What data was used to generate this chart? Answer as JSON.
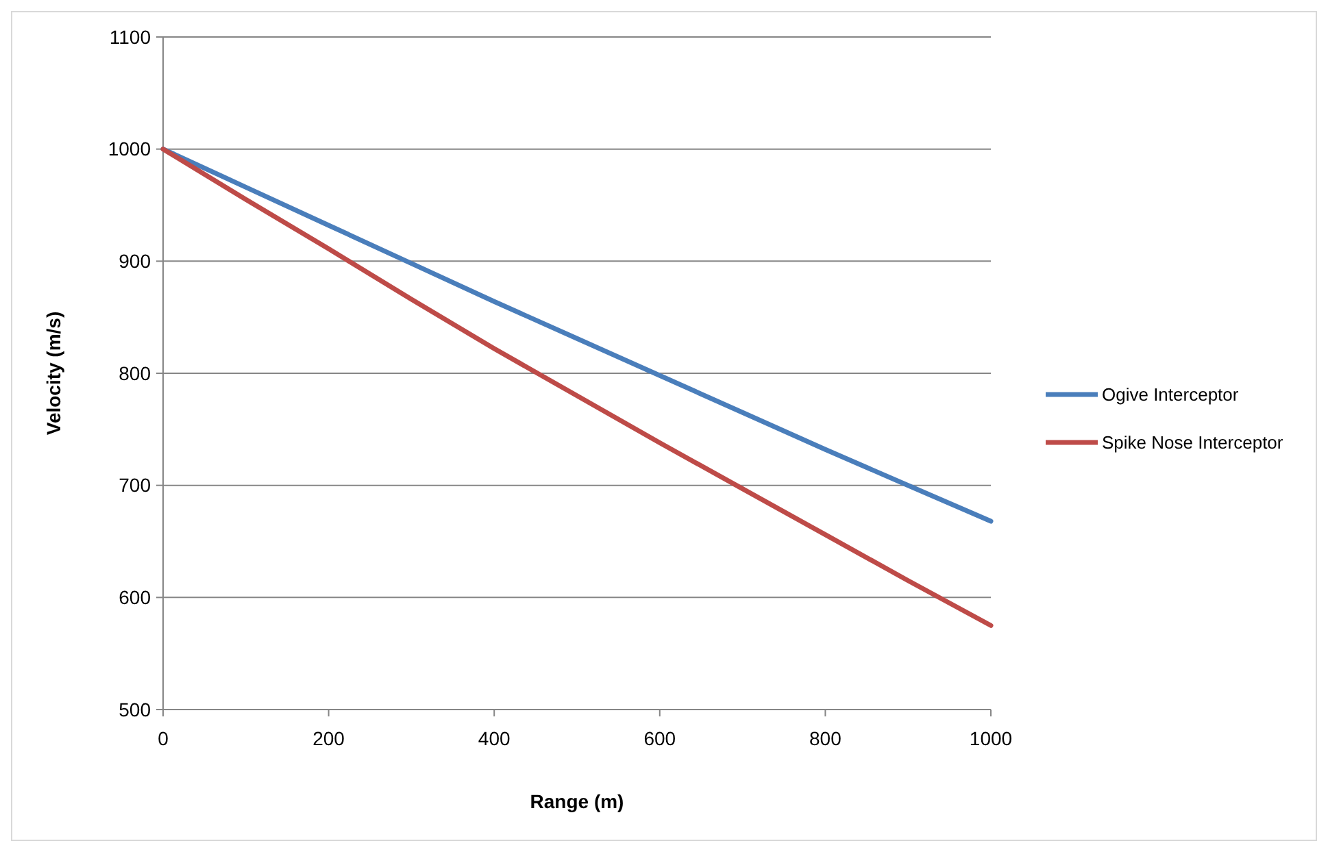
{
  "chart_data": {
    "type": "line",
    "xlabel": "Range (m)",
    "ylabel": "Velocity (m/s)",
    "x": [
      0,
      100,
      200,
      300,
      400,
      500,
      600,
      700,
      800,
      900,
      1000
    ],
    "series": [
      {
        "name": "Ogive Interceptor",
        "color": "#4a7ebb",
        "values": [
          1000,
          966,
          932,
          898,
          864,
          831,
          798,
          765,
          732,
          700,
          668
        ]
      },
      {
        "name": "Spike Nose Interceptor",
        "color": "#be4b48",
        "values": [
          1000,
          955,
          911,
          866,
          822,
          780,
          738,
          697,
          656,
          615,
          575
        ]
      }
    ],
    "xlim": [
      0,
      1000
    ],
    "xticks": [
      0,
      200,
      400,
      600,
      800,
      1000
    ],
    "ylim": [
      500,
      1100
    ],
    "yticks": [
      500,
      600,
      700,
      800,
      900,
      1000,
      1100
    ],
    "grid": "y",
    "legend": "right",
    "marker": "none",
    "line_style": "solid"
  }
}
